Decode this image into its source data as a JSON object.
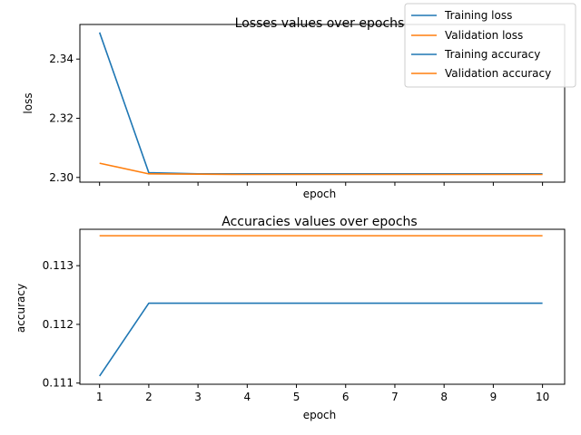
{
  "chart_data": [
    {
      "type": "line",
      "title": "Losses values over epochs",
      "xlabel": "epoch",
      "ylabel": "loss",
      "x": [
        1,
        2,
        3,
        4,
        5,
        6,
        7,
        8,
        9,
        10
      ],
      "xlim": [
        0.6,
        10.45
      ],
      "ylim": [
        2.2984,
        2.3517
      ],
      "yticks": [
        2.3,
        2.32,
        2.34
      ],
      "ytick_labels": [
        "2.30",
        "2.32",
        "2.34"
      ],
      "show_xtick_labels": false,
      "series": [
        {
          "name": "Training loss",
          "color": "#1f77b4",
          "values": [
            2.349,
            2.3016,
            2.3012,
            2.3012,
            2.3012,
            2.3012,
            2.3012,
            2.3012,
            2.3012,
            2.3012
          ]
        },
        {
          "name": "Validation loss",
          "color": "#ff7f0e",
          "values": [
            2.3048,
            2.3012,
            2.3011,
            2.301,
            2.301,
            2.301,
            2.301,
            2.301,
            2.301,
            2.301
          ]
        }
      ]
    },
    {
      "type": "line",
      "title": "Accuracies values over epochs",
      "xlabel": "epoch",
      "ylabel": "accuracy",
      "x": [
        1,
        2,
        3,
        4,
        5,
        6,
        7,
        8,
        9,
        10
      ],
      "xlim": [
        0.6,
        10.45
      ],
      "ylim": [
        0.11098,
        0.11362
      ],
      "yticks": [
        0.111,
        0.112,
        0.113
      ],
      "ytick_labels": [
        "0.111",
        "0.112",
        "0.113"
      ],
      "show_xtick_labels": true,
      "xtick_labels": [
        "1",
        "2",
        "3",
        "4",
        "5",
        "6",
        "7",
        "8",
        "9",
        "10"
      ],
      "series": [
        {
          "name": "Training accuracy",
          "color": "#1f77b4",
          "values": [
            0.11112,
            0.11236,
            0.11236,
            0.11236,
            0.11236,
            0.11236,
            0.11236,
            0.11236,
            0.11236,
            0.11236
          ]
        },
        {
          "name": "Validation accuracy",
          "color": "#ff7f0e",
          "values": [
            0.11351,
            0.11351,
            0.11351,
            0.11351,
            0.11351,
            0.11351,
            0.11351,
            0.11351,
            0.11351,
            0.11351
          ]
        }
      ]
    }
  ],
  "legend": {
    "position": "top-right",
    "entries": [
      {
        "label": "Training loss",
        "color": "#1f77b4"
      },
      {
        "label": "Validation loss",
        "color": "#ff7f0e"
      },
      {
        "label": "Training accuracy",
        "color": "#1f77b4"
      },
      {
        "label": "Validation accuracy",
        "color": "#ff7f0e"
      }
    ]
  }
}
